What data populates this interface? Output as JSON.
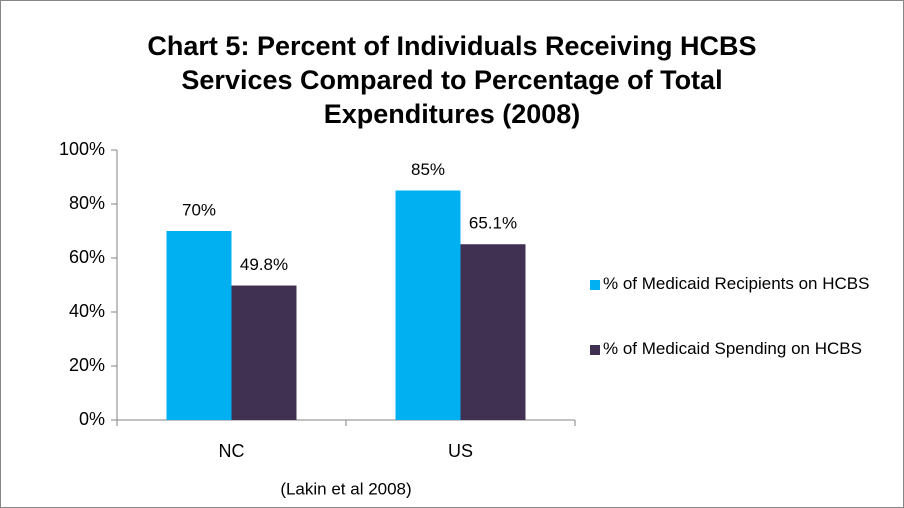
{
  "chart_data": {
    "type": "bar",
    "title": "Chart 5:  Percent of Individuals Receiving HCBS Services Compared to Percentage of Total Expenditures (2008)",
    "categories": [
      "NC",
      "US"
    ],
    "series": [
      {
        "name": "% of Medicaid Recipients on HCBS",
        "color": "#00b0f0",
        "values": [
          70,
          85
        ],
        "value_labels": [
          "70%",
          "85%"
        ]
      },
      {
        "name": "% of Medicaid Spending on HCBS",
        "color": "#403152",
        "values": [
          49.8,
          65.1
        ],
        "value_labels": [
          "49.8%",
          "65.1%"
        ]
      }
    ],
    "x_label": "(Lakin et al 2008)",
    "ylim": [
      0,
      100
    ],
    "yticks": [
      {
        "value": 0,
        "label": "0%"
      },
      {
        "value": 20,
        "label": "20%"
      },
      {
        "value": 40,
        "label": "40%"
      },
      {
        "value": 60,
        "label": "60%"
      },
      {
        "value": 80,
        "label": "80%"
      },
      {
        "value": 100,
        "label": "100%"
      }
    ],
    "grid": false,
    "legend": "right"
  }
}
